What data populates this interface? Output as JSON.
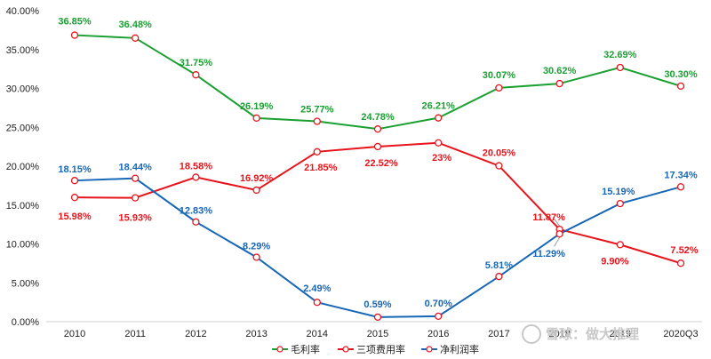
{
  "chart_data": {
    "type": "line",
    "title": "",
    "xlabel": "",
    "ylabel": "",
    "categories": [
      "2010",
      "2011",
      "2012",
      "2013",
      "2014",
      "2015",
      "2016",
      "2017",
      "2018",
      "2019",
      "2020Q3"
    ],
    "ylim": [
      0,
      40
    ],
    "yticks": [
      "0.00%",
      "5.00%",
      "10.00%",
      "15.00%",
      "20.00%",
      "25.00%",
      "30.00%",
      "35.00%",
      "40.00%"
    ],
    "legend_position": "bottom",
    "series": [
      {
        "name": "毛利率",
        "color": "#1aa032",
        "values": [
          36.85,
          36.48,
          31.75,
          26.19,
          25.77,
          24.78,
          26.21,
          30.07,
          30.62,
          32.69,
          30.3
        ],
        "labels": [
          "36.85%",
          "36.48%",
          "31.75%",
          "26.19%",
          "25.77%",
          "24.78%",
          "26.21%",
          "30.07%",
          "30.62%",
          "32.69%",
          "30.30%"
        ]
      },
      {
        "name": "三项费用率",
        "color": "#e8141c",
        "values": [
          15.98,
          15.93,
          18.58,
          16.92,
          21.85,
          22.52,
          23.0,
          20.05,
          11.87,
          9.9,
          7.52
        ],
        "labels": [
          "15.98%",
          "15.93%",
          "18.58%",
          "16.92%",
          "21.85%",
          "22.52%",
          "23%",
          "20.05%",
          "11.87%",
          "9.90%",
          "7.52%"
        ]
      },
      {
        "name": "净利润率",
        "color": "#1667b7",
        "values": [
          18.15,
          18.44,
          12.83,
          8.29,
          2.49,
          0.59,
          0.7,
          5.81,
          11.29,
          15.19,
          17.34
        ],
        "labels": [
          "18.15%",
          "18.44%",
          "12.83%",
          "8.29%",
          "2.49%",
          "0.59%",
          "0.70%",
          "5.81%",
          "11.29%",
          "15.19%",
          "17.34%"
        ]
      }
    ]
  },
  "watermark": "雪球：做大推理"
}
